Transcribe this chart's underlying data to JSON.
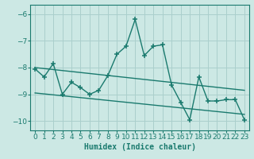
{
  "xlabel": "Humidex (Indice chaleur)",
  "background_color": "#cce8e4",
  "grid_color": "#aacfcc",
  "line_color": "#1a7a6e",
  "xlim": [
    -0.5,
    23.5
  ],
  "ylim": [
    -10.35,
    -5.65
  ],
  "yticks": [
    -10,
    -9,
    -8,
    -7,
    -6
  ],
  "xticks": [
    0,
    1,
    2,
    3,
    4,
    5,
    6,
    7,
    8,
    9,
    10,
    11,
    12,
    13,
    14,
    15,
    16,
    17,
    18,
    19,
    20,
    21,
    22,
    23
  ],
  "series1_x": [
    0,
    1,
    2,
    3,
    4,
    5,
    6,
    7,
    8,
    9,
    10,
    11,
    12,
    13,
    14,
    15,
    16,
    17,
    18,
    19,
    20,
    21,
    22,
    23
  ],
  "series1_y": [
    -8.05,
    -8.35,
    -7.85,
    -9.0,
    -8.55,
    -8.75,
    -9.0,
    -8.85,
    -8.3,
    -7.5,
    -7.2,
    -6.2,
    -7.55,
    -7.2,
    -7.15,
    -8.65,
    -9.3,
    -9.95,
    -8.35,
    -9.25,
    -9.25,
    -9.2,
    -9.2,
    -9.95
  ],
  "series2_x": [
    0,
    23
  ],
  "series2_y": [
    -8.0,
    -8.85
  ],
  "series3_x": [
    0,
    23
  ],
  "series3_y": [
    -8.95,
    -9.75
  ],
  "marker_size": 4.0,
  "line_width": 1.0,
  "tick_fontsize": 6.5
}
